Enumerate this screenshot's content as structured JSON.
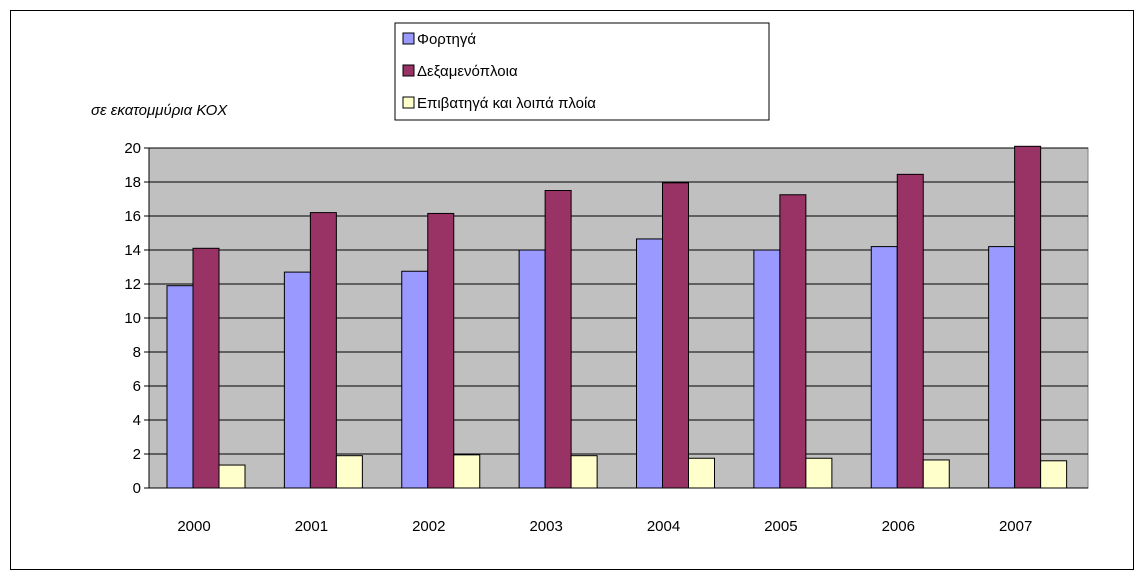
{
  "chart_data": {
    "type": "bar",
    "categories": [
      "2000",
      "2001",
      "2002",
      "2003",
      "2004",
      "2005",
      "2006",
      "2007"
    ],
    "series": [
      {
        "name": "Φορτηγά",
        "values": [
          11.9,
          12.7,
          12.75,
          14.0,
          14.65,
          14.0,
          14.2,
          14.2
        ],
        "color": "#9999ff"
      },
      {
        "name": "Δεξαμενόπλοια",
        "values": [
          14.1,
          16.2,
          16.15,
          17.5,
          17.95,
          17.25,
          18.45,
          20.1
        ],
        "color": "#993366"
      },
      {
        "name": "Επιβατηγά και λοιπά πλοία",
        "values": [
          1.35,
          1.9,
          1.95,
          1.9,
          1.75,
          1.75,
          1.65,
          1.6
        ],
        "color": "#ffffcc"
      }
    ],
    "ylabel": "σε εκατομμύρια ΚΟΧ",
    "ylim": [
      0,
      20
    ],
    "yticks": [
      "0",
      "2",
      "4",
      "6",
      "8",
      "10",
      "12",
      "14",
      "16",
      "18",
      "20"
    ],
    "grid": true,
    "plot_background": "#c0c0c0",
    "legend_position": "top-center"
  }
}
